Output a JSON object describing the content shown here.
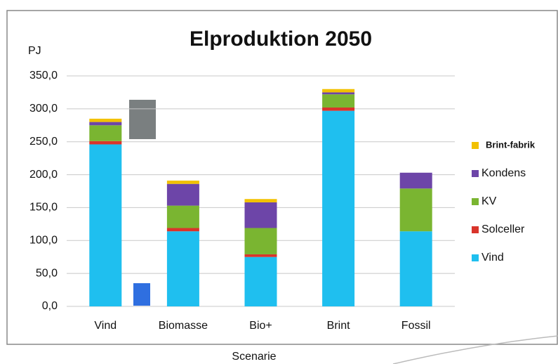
{
  "chart_data": {
    "type": "stacked_bar",
    "title": "Elproduktion 2050",
    "y_label": "PJ",
    "x_label": "Scenarie",
    "categories": [
      "Vind",
      "Biomasse",
      "Bio+",
      "Brint",
      "Fossil"
    ],
    "series": [
      {
        "name": "Vind",
        "color": "#1fbfef",
        "values": [
          246,
          114,
          75,
          297,
          114
        ]
      },
      {
        "name": "Solceller",
        "color": "#d9342b",
        "values": [
          5,
          5,
          4,
          5,
          0
        ]
      },
      {
        "name": "KV",
        "color": "#7ab531",
        "values": [
          24,
          34,
          40,
          20,
          65
        ]
      },
      {
        "name": "Kondens",
        "color": "#6d45a8",
        "values": [
          5,
          33,
          39,
          3,
          24
        ]
      },
      {
        "name": "Brint-fabrik",
        "color": "#f2c100",
        "values": [
          5,
          5,
          5,
          5,
          0
        ]
      }
    ],
    "ylim": [
      0,
      350
    ],
    "yticks": [
      {
        "value": 0,
        "label": "0,0"
      },
      {
        "value": 50,
        "label": "50,0"
      },
      {
        "value": 100,
        "label": "100,0"
      },
      {
        "value": 150,
        "label": "150,0"
      },
      {
        "value": 200,
        "label": "200,0"
      },
      {
        "value": 250,
        "label": "250,0"
      },
      {
        "value": 300,
        "label": "300,0"
      },
      {
        "value": 350,
        "label": "350,0"
      }
    ],
    "grid": true
  }
}
